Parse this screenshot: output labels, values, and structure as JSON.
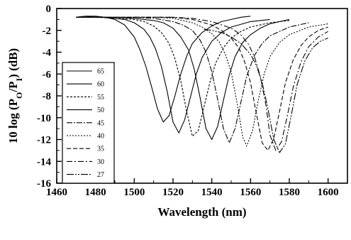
{
  "chart_data": {
    "type": "line",
    "title": "",
    "xlabel": "Wavelength (nm)",
    "ylabel_parts": {
      "main": "10 log (P",
      "sub1": "O",
      "mid": "/P",
      "sub2": "I",
      "end": ") (dB)"
    },
    "xlim": [
      1460,
      1610
    ],
    "ylim": [
      -16,
      0
    ],
    "xticks": [
      1460,
      1480,
      1500,
      1520,
      1540,
      1560,
      1580,
      1600
    ],
    "yticks": [
      0,
      -2,
      -4,
      -6,
      -8,
      -10,
      -12,
      -14,
      -16
    ],
    "grid": false,
    "legend_position": "left-middle",
    "series": [
      {
        "name": "65",
        "dash": "",
        "x": [
          1470,
          1475,
          1480,
          1485,
          1490,
          1495,
          1500,
          1503,
          1506,
          1509,
          1512,
          1515,
          1518,
          1521,
          1524,
          1527,
          1530,
          1535,
          1540,
          1545,
          1550,
          1555,
          1560
        ],
        "y": [
          -0.8,
          -0.7,
          -0.7,
          -0.8,
          -1.0,
          -1.5,
          -2.6,
          -3.8,
          -5.3,
          -7.2,
          -9.2,
          -10.4,
          -9.8,
          -8.0,
          -6.0,
          -4.4,
          -3.2,
          -2.2,
          -1.6,
          -1.2,
          -1.0,
          -0.8,
          -0.7
        ]
      },
      {
        "name": "60",
        "dash": "",
        "x": [
          1470,
          1475,
          1480,
          1485,
          1490,
          1495,
          1500,
          1505,
          1508,
          1511,
          1514,
          1517,
          1520,
          1523,
          1526,
          1529,
          1532,
          1535,
          1540,
          1545,
          1550,
          1560,
          1570
        ],
        "y": [
          -0.8,
          -0.7,
          -0.8,
          -0.8,
          -0.9,
          -1.0,
          -1.3,
          -1.9,
          -2.6,
          -3.7,
          -5.3,
          -7.6,
          -10.4,
          -11.4,
          -10.2,
          -8.1,
          -6.0,
          -4.5,
          -3.0,
          -2.2,
          -1.7,
          -1.2,
          -1.0
        ]
      },
      {
        "name": "55",
        "dash": "3,2",
        "x": [
          1470,
          1480,
          1490,
          1500,
          1505,
          1510,
          1514,
          1518,
          1521,
          1524,
          1527,
          1530,
          1533,
          1536,
          1539,
          1542,
          1546,
          1550,
          1555,
          1560,
          1570,
          1580
        ],
        "y": [
          -0.8,
          -0.8,
          -0.9,
          -1.0,
          -1.2,
          -1.6,
          -2.2,
          -3.2,
          -4.6,
          -6.6,
          -9.4,
          -11.7,
          -11.2,
          -9.0,
          -6.8,
          -5.0,
          -3.6,
          -2.7,
          -2.1,
          -1.7,
          -1.3,
          -1.1
        ]
      },
      {
        "name": "50",
        "dash": "",
        "x": [
          1470,
          1480,
          1490,
          1500,
          1510,
          1515,
          1520,
          1524,
          1528,
          1531,
          1534,
          1537,
          1540,
          1543,
          1546,
          1549,
          1552,
          1556,
          1560,
          1565,
          1570,
          1580
        ],
        "y": [
          -0.8,
          -0.8,
          -0.8,
          -0.9,
          -1.1,
          -1.3,
          -1.8,
          -2.6,
          -3.8,
          -5.6,
          -8.2,
          -11.0,
          -12.0,
          -10.8,
          -8.4,
          -6.1,
          -4.4,
          -3.1,
          -2.4,
          -1.8,
          -1.4,
          -1.0
        ]
      },
      {
        "name": "45",
        "dash": "8,2,2,2",
        "x": [
          1470,
          1480,
          1490,
          1500,
          1510,
          1520,
          1525,
          1530,
          1534,
          1537,
          1540,
          1543,
          1546,
          1549,
          1552,
          1555,
          1558,
          1562,
          1566,
          1570,
          1580,
          1590
        ],
        "y": [
          -0.8,
          -0.8,
          -0.8,
          -0.8,
          -0.9,
          -1.2,
          -1.5,
          -2.0,
          -2.9,
          -4.0,
          -5.8,
          -8.3,
          -11.0,
          -12.3,
          -11.0,
          -8.6,
          -6.2,
          -4.3,
          -3.2,
          -2.5,
          -1.7,
          -1.3
        ]
      },
      {
        "name": "40",
        "dash": "2,2",
        "x": [
          1480,
          1490,
          1500,
          1510,
          1520,
          1530,
          1535,
          1540,
          1544,
          1547,
          1550,
          1553,
          1556,
          1558,
          1561,
          1564,
          1567,
          1570,
          1575,
          1580,
          1590,
          1600
        ],
        "y": [
          -0.8,
          -0.8,
          -0.8,
          -0.8,
          -0.9,
          -1.3,
          -1.7,
          -2.3,
          -3.1,
          -4.2,
          -5.8,
          -8.6,
          -11.8,
          -12.6,
          -11.2,
          -8.4,
          -6.0,
          -4.4,
          -3.1,
          -2.4,
          -1.7,
          -1.4
        ]
      },
      {
        "name": "35",
        "dash": "6,3",
        "x": [
          1490,
          1500,
          1510,
          1520,
          1530,
          1540,
          1545,
          1550,
          1554,
          1557,
          1560,
          1563,
          1566,
          1569,
          1572,
          1575,
          1578,
          1582,
          1586,
          1590,
          1595,
          1600
        ],
        "y": [
          -0.8,
          -0.8,
          -0.8,
          -0.8,
          -1.0,
          -1.5,
          -2.0,
          -2.7,
          -3.6,
          -4.9,
          -6.8,
          -9.6,
          -12.3,
          -13.0,
          -11.9,
          -9.4,
          -6.8,
          -4.7,
          -3.4,
          -2.6,
          -2.0,
          -1.7
        ]
      },
      {
        "name": "30",
        "dash": "8,3,2,3",
        "x": [
          1500,
          1510,
          1520,
          1530,
          1540,
          1550,
          1555,
          1559,
          1562,
          1565,
          1568,
          1570,
          1573,
          1576,
          1579,
          1582,
          1586,
          1590,
          1595,
          1600
        ],
        "y": [
          -0.8,
          -0.8,
          -0.8,
          -0.9,
          -1.2,
          -1.8,
          -2.4,
          -3.3,
          -4.4,
          -6.2,
          -8.9,
          -11.6,
          -13.0,
          -12.2,
          -9.8,
          -7.2,
          -4.9,
          -3.5,
          -2.6,
          -2.1
        ]
      },
      {
        "name": "27",
        "dash": "10,2,2,2,2,2",
        "x": [
          1536,
          1540,
          1545,
          1550,
          1555,
          1560,
          1563,
          1566,
          1569,
          1572,
          1575,
          1578,
          1581,
          1584,
          1588,
          1592,
          1596,
          1600
        ],
        "y": [
          -1.9,
          -2.0,
          -2.2,
          -2.6,
          -3.2,
          -4.2,
          -5.2,
          -6.8,
          -9.2,
          -12.0,
          -13.2,
          -12.4,
          -9.8,
          -7.0,
          -4.8,
          -3.6,
          -3.0,
          -2.7
        ]
      }
    ]
  }
}
